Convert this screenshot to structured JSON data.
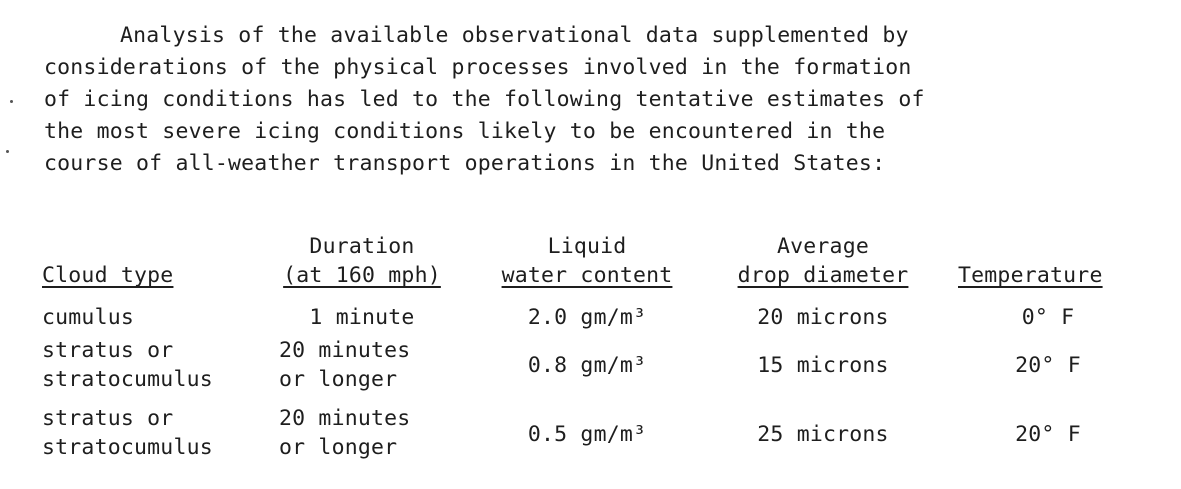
{
  "paragraph": {
    "lines": [
      "Analysis of the available observational data supplemented by",
      "considerations of the physical processes involved in the formation",
      "of icing conditions has led to the following tentative estimates of",
      "the most severe icing conditions likely to be encountered in the",
      "course of all-weather transport operations in the United States:"
    ]
  },
  "table": {
    "headers": {
      "cloud_type": "Cloud type",
      "duration_top": "Duration",
      "duration_bottom": "(at 160 mph)",
      "liquid_top": "Liquid",
      "liquid_bottom": "water content",
      "drop_top": "Average",
      "drop_bottom": "drop diameter",
      "temperature": "Temperature"
    },
    "rows": [
      {
        "cloud_line1": "cumulus",
        "cloud_line2": "",
        "duration_line1": "1 minute",
        "duration_line2": "",
        "water": "2.0 gm/m³",
        "drop": "20 microns",
        "temp": "0° F"
      },
      {
        "cloud_line1": "stratus or",
        "cloud_line2": "stratocumulus",
        "duration_line1": "20 minutes",
        "duration_line2": "or longer",
        "water": "0.8 gm/m³",
        "drop": "15 microns",
        "temp": "20° F"
      },
      {
        "cloud_line1": "stratus or",
        "cloud_line2": "stratocumulus",
        "duration_line1": "20 minutes",
        "duration_line2": "or longer",
        "water": "0.5 gm/m³",
        "drop": "25 microns",
        "temp": "20° F"
      }
    ]
  }
}
